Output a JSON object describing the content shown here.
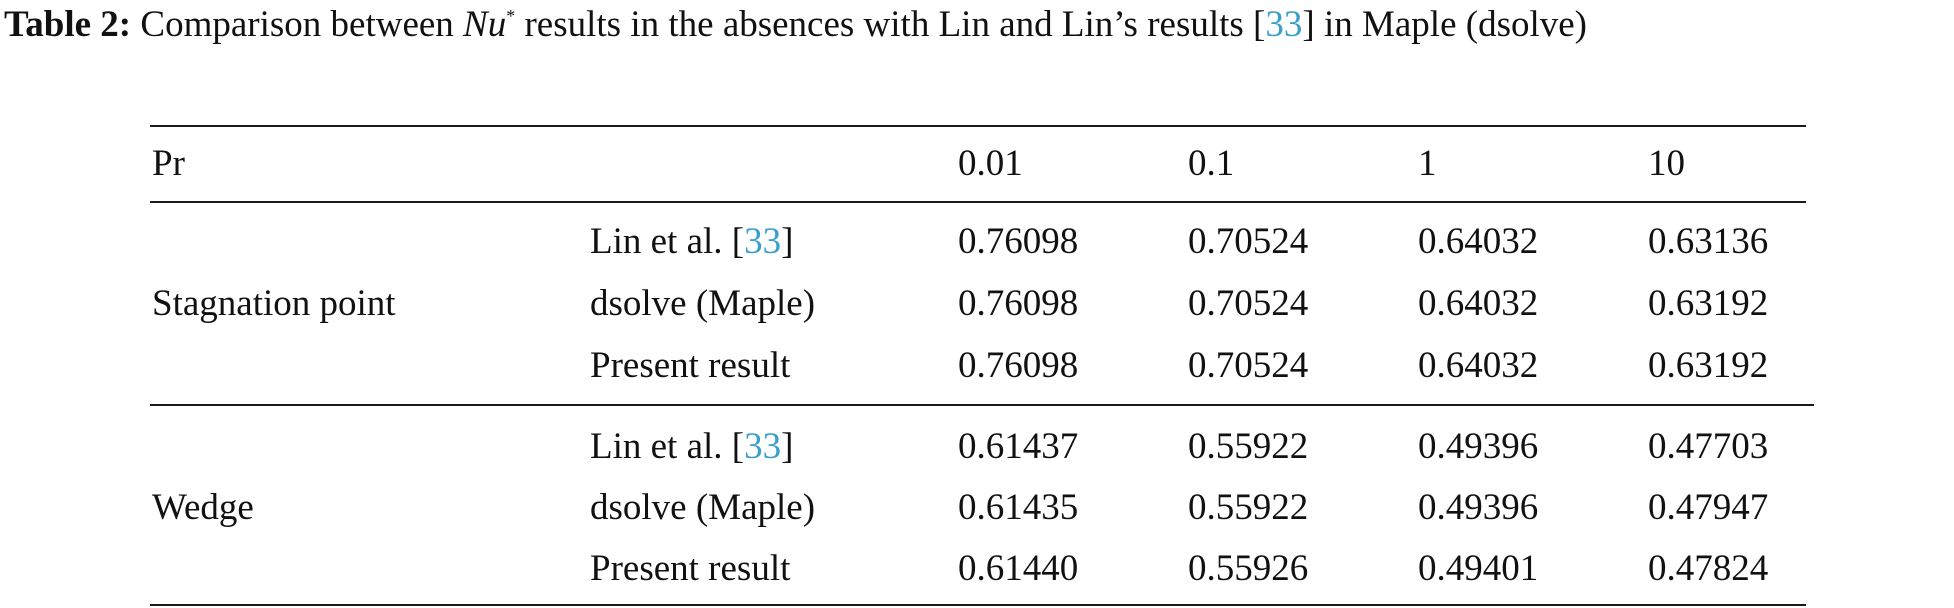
{
  "caption": {
    "label": "Table 2:",
    "text_before": " Comparison between ",
    "symbol": "Nu",
    "symbol_sup": "*",
    "text_mid": " results in the absences with Lin and Lin’s results [",
    "ref": "33",
    "text_after": "] in Maple (dsolve)"
  },
  "table": {
    "header": {
      "label": "Pr",
      "values": [
        "0.01",
        "0.1",
        "1",
        "10"
      ]
    },
    "groups": [
      {
        "name": "Stagnation point",
        "rows": [
          {
            "method": "Lin et al. [",
            "ref": "33",
            "method_end": "]",
            "values": [
              "0.76098",
              "0.70524",
              "0.64032",
              "0.63136"
            ]
          },
          {
            "method": "dsolve (Maple)",
            "values": [
              "0.76098",
              "0.70524",
              "0.64032",
              "0.63192"
            ]
          },
          {
            "method": "Present result",
            "values": [
              "0.76098",
              "0.70524",
              "0.64032",
              "0.63192"
            ]
          }
        ]
      },
      {
        "name": "Wedge",
        "rows": [
          {
            "method": "Lin et al. [",
            "ref": "33",
            "method_end": "]",
            "values": [
              "0.61437",
              "0.55922",
              "0.49396",
              "0.47703"
            ]
          },
          {
            "method": "dsolve (Maple)",
            "values": [
              "0.61435",
              "0.55922",
              "0.49396",
              "0.47947"
            ]
          },
          {
            "method": "Present result",
            "values": [
              "0.61440",
              "0.55926",
              "0.49401",
              "0.47824"
            ]
          }
        ]
      }
    ]
  },
  "colors": {
    "text": "#111111",
    "ref_link": "#3a9fcc",
    "rule": "#1a1a1a"
  }
}
